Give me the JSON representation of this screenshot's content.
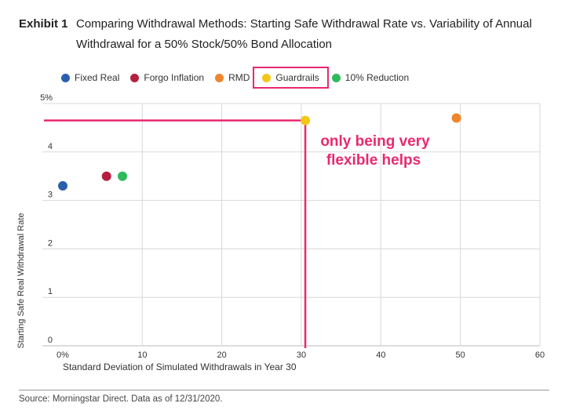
{
  "header": {
    "exhibit": "Exhibit 1",
    "title": "Comparing Withdrawal Methods: Starting Safe Withdrawal Rate vs. Variability of Annual Withdrawal for a 50% Stock/50% Bond Allocation"
  },
  "annotation": {
    "line1": "only being very",
    "line2": "flexible helps",
    "color": "#e8296f"
  },
  "footer": {
    "source": "Source: Morningstar Direct. Data as of 12/31/2020."
  },
  "chart_data": {
    "type": "scatter",
    "xlabel": "Standard Deviation of Simulated Withdrawals in Year 30",
    "ylabel": "Starting Safe Real Withdrawal Rate",
    "xlim": [
      0,
      60
    ],
    "ylim": [
      0,
      5
    ],
    "x_ticks": [
      "0%",
      "10",
      "20",
      "30",
      "40",
      "50",
      "60"
    ],
    "y_ticks": [
      "0",
      "1",
      "2",
      "3",
      "4",
      "5%"
    ],
    "grid": true,
    "legend_position": "top-left",
    "highlighted_series": "Guardrails",
    "series": [
      {
        "name": "Fixed Real",
        "color": "#2a5fac",
        "x": 0,
        "y": 3.3
      },
      {
        "name": "Forgo Inflation",
        "color": "#b5203f",
        "x": 5.5,
        "y": 3.5
      },
      {
        "name": "RMD",
        "color": "#f0862c",
        "x": 49.5,
        "y": 4.7
      },
      {
        "name": "Guardrails",
        "color": "#f2c718",
        "x": 30.5,
        "y": 4.65
      },
      {
        "name": "10% Reduction",
        "color": "#2dba5a",
        "x": 7.5,
        "y": 3.5
      }
    ]
  }
}
